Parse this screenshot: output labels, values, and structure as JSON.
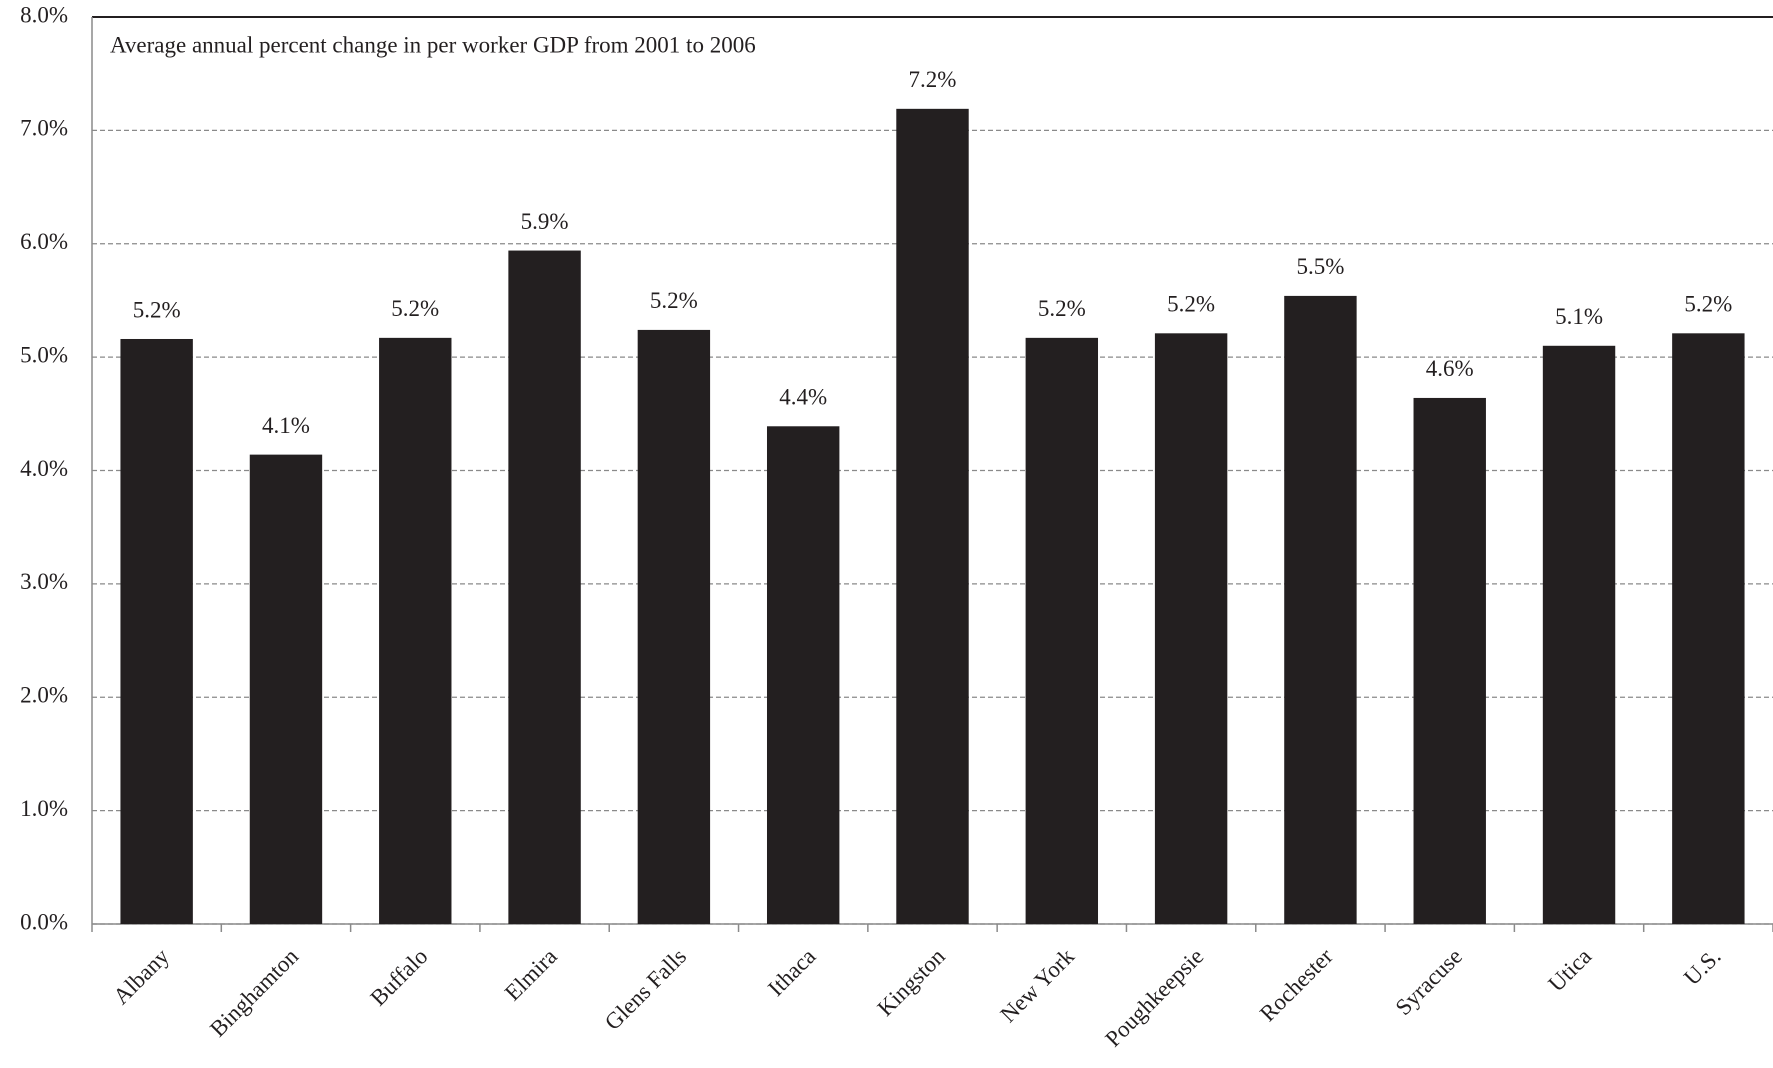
{
  "chart_data": {
    "type": "bar",
    "title": "Average annual percent change in per worker GDP from 2001 to 2006",
    "categories": [
      "Albany",
      "Binghamton",
      "Buffalo",
      "Elmira",
      "Glens Falls",
      "Ithaca",
      "Kingston",
      "New York",
      "Poughkeepsie",
      "Rochester",
      "Syracuse",
      "Utica",
      "U.S."
    ],
    "values": [
      5.16,
      4.14,
      5.17,
      5.94,
      5.24,
      4.39,
      7.19,
      5.17,
      5.21,
      5.54,
      4.64,
      5.1,
      5.21
    ],
    "value_labels": [
      "5.2%",
      "4.1%",
      "5.2%",
      "5.9%",
      "5.2%",
      "4.4%",
      "7.2%",
      "5.2%",
      "5.2%",
      "5.5%",
      "4.6%",
      "5.1%",
      "5.2%"
    ],
    "color": "#231f20",
    "ylim": [
      0,
      8
    ],
    "yticks": [
      {
        "value": 0,
        "label": "0.0%"
      },
      {
        "value": 1,
        "label": "1.0%"
      },
      {
        "value": 2,
        "label": "2.0%"
      },
      {
        "value": 3,
        "label": "3.0%"
      },
      {
        "value": 4,
        "label": "4.0%"
      },
      {
        "value": 5,
        "label": "5.0%"
      },
      {
        "value": 6,
        "label": "6.0%"
      },
      {
        "value": 7,
        "label": "7.0%"
      },
      {
        "value": 8,
        "label": "8.0%"
      }
    ],
    "grid": true
  }
}
